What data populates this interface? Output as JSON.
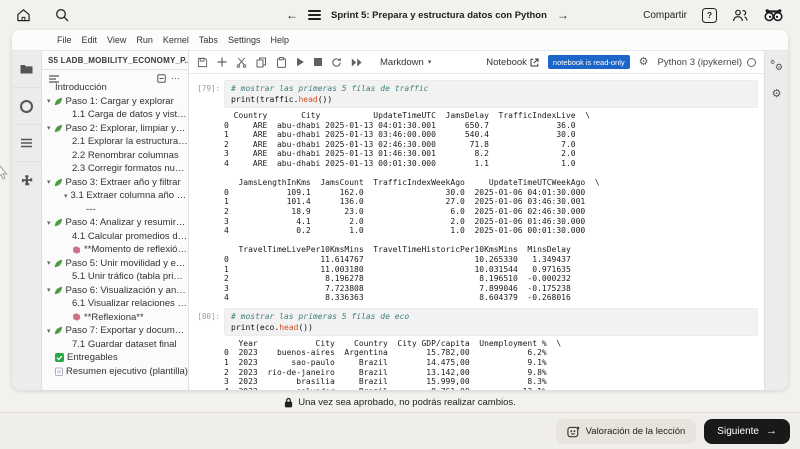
{
  "topbar": {
    "title": "Sprint 5: Prepara y estructura datos con Python",
    "share_label": "Compartir",
    "help_label": "?"
  },
  "icons": {
    "back": "←",
    "forward": "→",
    "caret_down": "▾",
    "more": "⋯",
    "gear": "⚙",
    "next_arrow": "→"
  },
  "colors": {
    "readonly_badge": "#1d66c9",
    "next_button_bg": "#191919",
    "page_bg": "#f3f1ed"
  },
  "jupyter": {
    "menu": [
      "File",
      "Edit",
      "View",
      "Run",
      "Kernel",
      "Tabs",
      "Settings",
      "Help"
    ],
    "toolbar": {
      "cell_type": "Markdown",
      "notebook_label": "Notebook",
      "readonly_badge": "notebook is read-only",
      "kernel_label": "Python 3 (ipykernel)"
    },
    "sidebar": {
      "panel_title": "S5 LADB_MOBILITY_ECONOMY_P...",
      "toc": [
        {
          "label": "Introducción",
          "level": 0,
          "caret": false,
          "icon": null
        },
        {
          "label": "Paso 1: Cargar y explorar",
          "level": 0,
          "caret": true,
          "icon": "seedling"
        },
        {
          "label": "1.1 Carga de datos y vista rápi...",
          "level": 1,
          "caret": false,
          "icon": null
        },
        {
          "label": "Paso 2: Explorar, limpiar y prep...",
          "level": 0,
          "caret": true,
          "icon": "seedling"
        },
        {
          "label": "2.1 Explorar la estructura y tip...",
          "level": 1,
          "caret": false,
          "icon": null
        },
        {
          "label": "2.2 Renombrar columnas",
          "level": 1,
          "caret": false,
          "icon": null
        },
        {
          "label": "2.3 Corregir formatos numéri...",
          "level": 1,
          "caret": false,
          "icon": null
        },
        {
          "label": "Paso 3: Extraer año y filtrar",
          "level": 0,
          "caret": true,
          "icon": "seedling"
        },
        {
          "label": "3.1 Extraer columna año y filtr...",
          "level": 1,
          "caret": true,
          "icon": null
        },
        {
          "label": "---",
          "level": 2,
          "caret": false,
          "icon": null
        },
        {
          "label": "Paso 4: Analizar y resumir dato...",
          "level": 0,
          "caret": true,
          "icon": "seedling"
        },
        {
          "label": "4.1 Calcular promedios de tráf...",
          "level": 1,
          "caret": false,
          "icon": null
        },
        {
          "label": "**Momento de reflexión**",
          "level": 1,
          "caret": false,
          "icon": "brain"
        },
        {
          "label": "Paso 5: Unir movilidad y econo...",
          "level": 0,
          "caret": true,
          "icon": "seedling"
        },
        {
          "label": "5.1 Unir tráfico (tabla principa...",
          "level": 1,
          "caret": false,
          "icon": null
        },
        {
          "label": "Paso 6: Visualización y análisis...",
          "level": 0,
          "caret": true,
          "icon": "seedling"
        },
        {
          "label": "6.1 Visualizar relaciones entre...",
          "level": 1,
          "caret": false,
          "icon": null
        },
        {
          "label": "**Reflexiona**",
          "level": 1,
          "caret": false,
          "icon": "brain"
        },
        {
          "label": "Paso 7: Exportar y documentar...",
          "level": 0,
          "caret": true,
          "icon": "seedling"
        },
        {
          "label": "7.1 Guardar dataset final",
          "level": 1,
          "caret": false,
          "icon": null
        },
        {
          "label": "Entregables",
          "level": 0,
          "caret": false,
          "icon": "check"
        },
        {
          "label": "Resumen ejecutivo (plantilla)",
          "level": 0,
          "caret": false,
          "icon": "clipboard"
        }
      ]
    },
    "cells": [
      {
        "exec": "[79]:",
        "comment": "# mostrar las primeras 5 filas de traffic",
        "code_open": "print(",
        "code_obj": "traffic",
        "code_dot": ".",
        "code_fn": "head",
        "code_close": "())",
        "output": "  Country       City           UpdateTimeUTC  JamsDelay  TrafficIndexLive  \\\n0     ARE  abu-dhabi 2025-01-13 04:01:30.001      650.7              36.0\n1     ARE  abu-dhabi 2025-01-13 03:46:00.000      540.4              30.0\n2     ARE  abu-dhabi 2025-01-13 02:46:30.000       71.8               7.0\n3     ARE  abu-dhabi 2025-01-13 01:46:30.001        8.2               2.0\n4     ARE  abu-dhabi 2025-01-13 00:01:30.000        1.1               1.0\n\n   JamsLengthInKms  JamsCount  TrafficIndexWeekAgo     UpdateTimeUTCWeekAgo  \\\n0            109.1      162.0                 30.0  2025-01-06 04:01:30.000\n1            101.4      136.0                 27.0  2025-01-06 03:46:30.001\n2             18.9       23.0                  6.0  2025-01-06 02:46:30.000\n3              4.1        2.0                  2.0  2025-01-06 01:46:30.000\n4              0.2        1.0                  1.0  2025-01-06 00:01:30.000\n\n   TravelTimeLivePer10KmsMins  TravelTimeHistoricPer10KmsMins  MinsDelay\n0                   11.614767                       10.265330   1.349437\n1                   11.003180                       10.031544   0.971635\n2                    8.196278                        8.196510  -0.000232\n3                    7.723808                        7.899046  -0.175238\n4                    8.336363                        8.604379  -0.268016"
      },
      {
        "exec": "[80]:",
        "comment": "# mostrar las primeras 5 filas de eco",
        "code_open": "print(",
        "code_obj": "eco",
        "code_dot": ".",
        "code_fn": "head",
        "code_close": "())",
        "output": "   Year            City    Country  City GDP/capita  Unemployment %  \\\n0  2023    buenos-aires  Argentina        15.782,00            6.2%\n1  2023       sao-paulo     Brazil        14.475,00            9.1%\n2  2023  rio-de-janeiro     Brazil        13.142,00            9.8%\n3  2023        brasilia     Brazil        15.999,00            8.3%\n4  2023        salvador     Brazil         8.761,00           13.1%"
      }
    ]
  },
  "footer": {
    "lock_message": "Una vez sea aprobado, no podrás realizar cambios.",
    "rating_button": "Valoración de la lección",
    "next_button": "Siguiente"
  }
}
